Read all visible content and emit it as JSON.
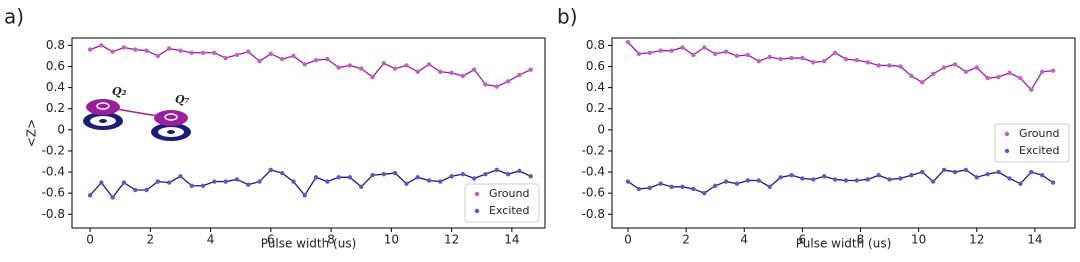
{
  "chart_data": [
    {
      "type": "line",
      "panel_label": "a)",
      "xlabel": "Pulse width (us)",
      "ylabel": "<Z>",
      "annotations": [
        "Q₂",
        "Q₇"
      ],
      "x": [
        0,
        0.375,
        0.75,
        1.125,
        1.5,
        1.875,
        2.25,
        2.625,
        3,
        3.375,
        3.75,
        4.125,
        4.5,
        4.875,
        5.25,
        5.625,
        6,
        6.375,
        6.75,
        7.125,
        7.5,
        7.875,
        8.25,
        8.625,
        9,
        9.375,
        9.75,
        10.125,
        10.5,
        10.875,
        11.25,
        11.625,
        12,
        12.375,
        12.75,
        13.125,
        13.5,
        13.875,
        14.25,
        14.625
      ],
      "series": [
        {
          "name": "Ground",
          "color": "#9b1f9b",
          "marker_color": "#c060c8",
          "values": [
            0.76,
            0.8,
            0.74,
            0.78,
            0.76,
            0.75,
            0.7,
            0.77,
            0.75,
            0.73,
            0.73,
            0.73,
            0.68,
            0.71,
            0.74,
            0.65,
            0.72,
            0.67,
            0.7,
            0.62,
            0.66,
            0.67,
            0.59,
            0.61,
            0.58,
            0.5,
            0.63,
            0.58,
            0.61,
            0.55,
            0.62,
            0.55,
            0.54,
            0.51,
            0.57,
            0.43,
            0.41,
            0.46,
            0.52,
            0.57
          ]
        },
        {
          "name": "Excited",
          "color": "#1c1c7a",
          "marker_color": "#5a5ac0",
          "values": [
            -0.62,
            -0.5,
            -0.64,
            -0.5,
            -0.57,
            -0.57,
            -0.49,
            -0.5,
            -0.44,
            -0.53,
            -0.53,
            -0.49,
            -0.49,
            -0.47,
            -0.52,
            -0.49,
            -0.38,
            -0.41,
            -0.49,
            -0.62,
            -0.45,
            -0.49,
            -0.45,
            -0.45,
            -0.54,
            -0.43,
            -0.42,
            -0.41,
            -0.51,
            -0.45,
            -0.48,
            -0.49,
            -0.44,
            -0.42,
            -0.46,
            -0.42,
            -0.38,
            -0.42,
            -0.39,
            -0.44
          ]
        }
      ],
      "xlim": [
        -0.6,
        15.1
      ],
      "xticks": [
        0,
        2,
        4,
        6,
        8,
        10,
        12,
        14
      ],
      "ylim": [
        -0.93,
        0.87
      ],
      "yticks": [
        -0.8,
        -0.6,
        -0.4,
        -0.2,
        0.0,
        0.2,
        0.4,
        0.6,
        0.8
      ],
      "legend": "lower right"
    },
    {
      "type": "line",
      "panel_label": "b)",
      "xlabel": "Pulse width (us)",
      "x": [
        0,
        0.375,
        0.75,
        1.125,
        1.5,
        1.875,
        2.25,
        2.625,
        3,
        3.375,
        3.75,
        4.125,
        4.5,
        4.875,
        5.25,
        5.625,
        6,
        6.375,
        6.75,
        7.125,
        7.5,
        7.875,
        8.25,
        8.625,
        9,
        9.375,
        9.75,
        10.125,
        10.5,
        10.875,
        11.25,
        11.625,
        12,
        12.375,
        12.75,
        13.125,
        13.5,
        13.875,
        14.25,
        14.625
      ],
      "series": [
        {
          "name": "Ground",
          "color": "#9b1f9b",
          "marker_color": "#c060c8",
          "values": [
            0.83,
            0.72,
            0.73,
            0.75,
            0.75,
            0.78,
            0.71,
            0.78,
            0.72,
            0.74,
            0.7,
            0.71,
            0.65,
            0.69,
            0.67,
            0.68,
            0.68,
            0.64,
            0.65,
            0.73,
            0.67,
            0.66,
            0.64,
            0.61,
            0.61,
            0.6,
            0.51,
            0.45,
            0.53,
            0.59,
            0.62,
            0.55,
            0.59,
            0.49,
            0.5,
            0.54,
            0.49,
            0.38,
            0.55,
            0.56
          ]
        },
        {
          "name": "Excited",
          "color": "#1c1c7a",
          "marker_color": "#5a5ac0",
          "values": [
            -0.49,
            -0.56,
            -0.55,
            -0.51,
            -0.54,
            -0.54,
            -0.56,
            -0.6,
            -0.53,
            -0.49,
            -0.51,
            -0.48,
            -0.48,
            -0.54,
            -0.45,
            -0.43,
            -0.46,
            -0.47,
            -0.44,
            -0.47,
            -0.48,
            -0.48,
            -0.47,
            -0.43,
            -0.47,
            -0.46,
            -0.43,
            -0.4,
            -0.49,
            -0.38,
            -0.4,
            -0.38,
            -0.45,
            -0.42,
            -0.4,
            -0.46,
            -0.51,
            -0.4,
            -0.43,
            -0.5
          ]
        }
      ],
      "xlim": [
        -0.55,
        15.38
      ],
      "xticks": [
        0,
        2,
        4,
        6,
        8,
        10,
        12,
        14
      ],
      "ylim": [
        -0.93,
        0.87
      ],
      "yticks": [
        -0.8,
        -0.6,
        -0.4,
        -0.2,
        0.0,
        0.2,
        0.4,
        0.6,
        0.8
      ],
      "legend": "center right"
    }
  ]
}
